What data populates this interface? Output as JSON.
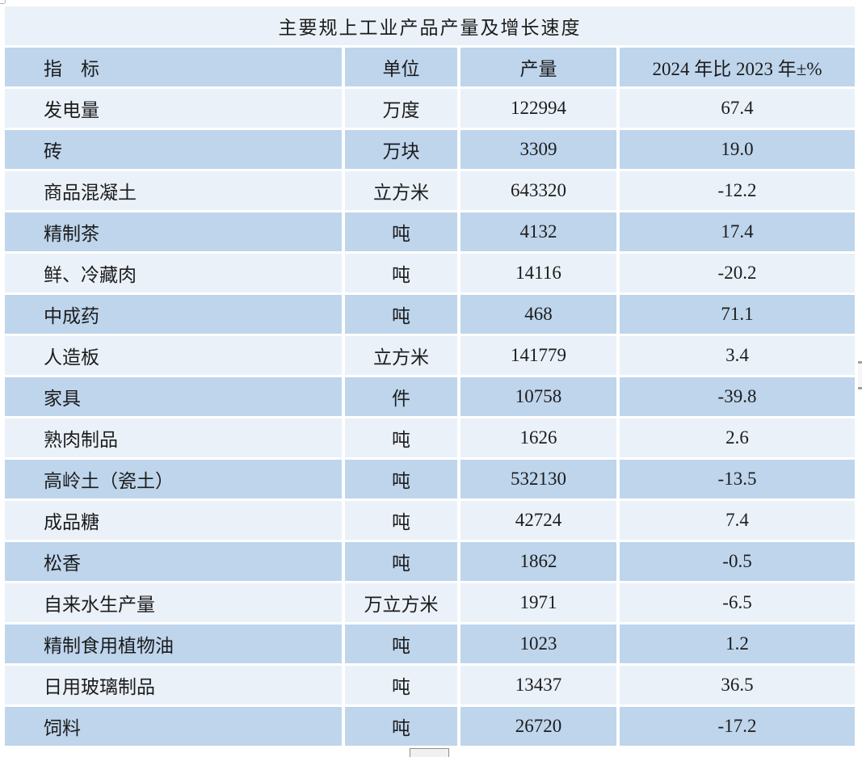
{
  "title": "主要规上工业产品产量及增长速度",
  "table": {
    "headers": [
      "指　标",
      "单位",
      "产量",
      "2024 年比 2023 年±%"
    ],
    "rows": [
      {
        "indicator": "发电量",
        "unit": "万度",
        "output": "122994",
        "change": "67.4"
      },
      {
        "indicator": "砖",
        "unit": "万块",
        "output": "3309",
        "change": "19.0"
      },
      {
        "indicator": "商品混凝土",
        "unit": "立方米",
        "output": "643320",
        "change": "-12.2"
      },
      {
        "indicator": "精制茶",
        "unit": "吨",
        "output": "4132",
        "change": "17.4"
      },
      {
        "indicator": "鲜、冷藏肉",
        "unit": "吨",
        "output": "14116",
        "change": "-20.2"
      },
      {
        "indicator": "中成药",
        "unit": "吨",
        "output": "468",
        "change": "71.1"
      },
      {
        "indicator": "人造板",
        "unit": "立方米",
        "output": "141779",
        "change": "3.4"
      },
      {
        "indicator": "家具",
        "unit": "件",
        "output": "10758",
        "change": "-39.8"
      },
      {
        "indicator": "熟肉制品",
        "unit": "吨",
        "output": "1626",
        "change": "2.6"
      },
      {
        "indicator": "高岭土（瓷土）",
        "unit": "吨",
        "output": "532130",
        "change": "-13.5"
      },
      {
        "indicator": "成品糖",
        "unit": "吨",
        "output": "42724",
        "change": "7.4"
      },
      {
        "indicator": "松香",
        "unit": "吨",
        "output": "1862",
        "change": "-0.5"
      },
      {
        "indicator": "自来水生产量",
        "unit": "万立方米",
        "output": "1971",
        "change": "-6.5"
      },
      {
        "indicator": "精制食用植物油",
        "unit": "吨",
        "output": "1023",
        "change": "1.2"
      },
      {
        "indicator": "日用玻璃制品",
        "unit": "吨",
        "output": "13437",
        "change": "36.5"
      },
      {
        "indicator": "饲料",
        "unit": "吨",
        "output": "26720",
        "change": "-17.2"
      }
    ]
  },
  "colors": {
    "row_dark": "#bed5ec",
    "row_light": "#eaf1f9",
    "background": "#ffffff",
    "text": "#1c1c1c"
  }
}
